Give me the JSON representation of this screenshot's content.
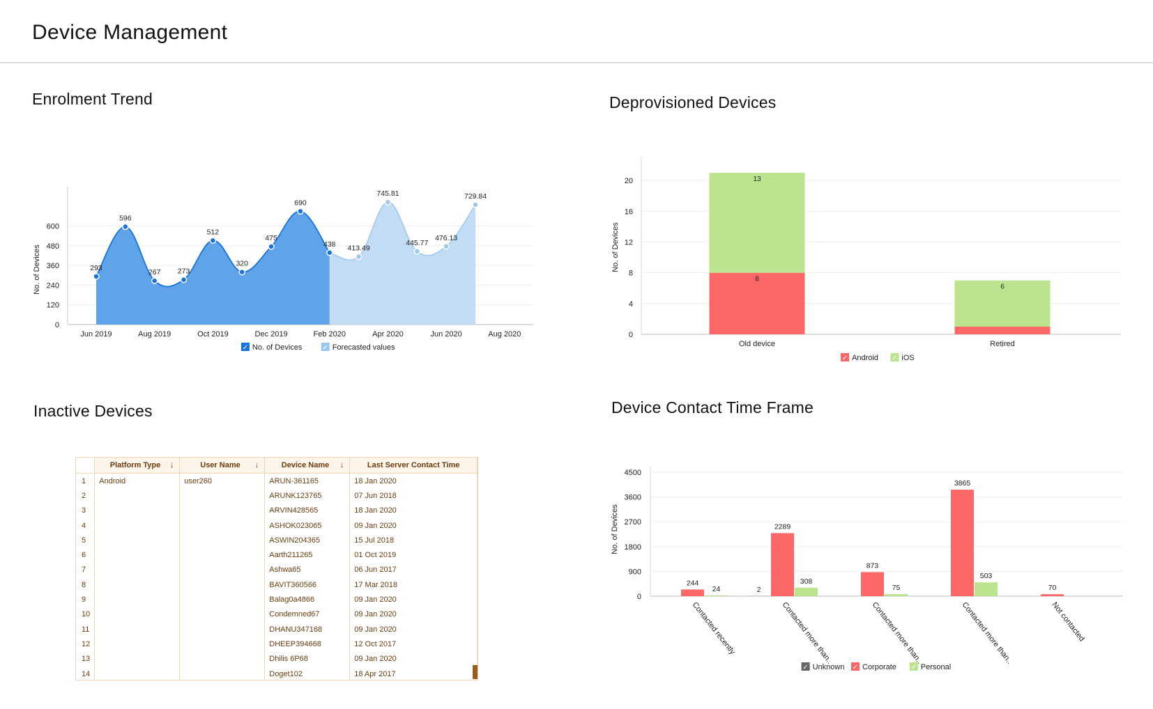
{
  "header": {
    "title": "Device Management"
  },
  "sections": {
    "enrolment": {
      "title": "Enrolment Trend"
    },
    "deprovisioned": {
      "title": "Deprovisioned Devices"
    },
    "inactive": {
      "title": "Inactive Devices"
    },
    "contact": {
      "title": "Device Contact Time Frame"
    }
  },
  "colors": {
    "actual": "#5fa4e8",
    "actual_line": "#1a73d9",
    "forecast": "#c2dcf5",
    "forecast_line": "#9ec7f0",
    "android": "#fe6767",
    "ios": "#bce48f",
    "unknown": "#666666",
    "corporate": "#fe6767",
    "personal": "#bce48f",
    "table_text": "#6b3d0f",
    "table_border": "#f2d6b6"
  },
  "chart_data": [
    {
      "id": "enrolment",
      "type": "area",
      "title": "Enrolment Trend",
      "xlabel": "",
      "ylabel": "No. of Devices",
      "ylim": [
        0,
        840
      ],
      "yticks": [
        0,
        120,
        240,
        360,
        480,
        600
      ],
      "xtick_labels": [
        "Jun 2019",
        "Aug 2019",
        "Oct 2019",
        "Dec 2019",
        "Feb 2020",
        "Apr 2020",
        "Jun 2020",
        "Aug 2020"
      ],
      "grid": true,
      "legend": {
        "position": "bottom",
        "entries": [
          "No. of Devices",
          "Forecasted values"
        ]
      },
      "series": [
        {
          "name": "No. of Devices",
          "x": [
            "Jun 2019",
            "Jul 2019",
            "Aug 2019",
            "Sep 2019",
            "Oct 2019",
            "Nov 2019",
            "Dec 2019",
            "Jan 2020",
            "Feb 2020"
          ],
          "values": [
            293,
            596,
            267,
            273,
            512,
            320,
            475,
            690,
            438
          ],
          "labels": [
            "293",
            "596",
            "267",
            "273",
            "512",
            "320",
            "475",
            "690",
            "438"
          ]
        },
        {
          "name": "Forecasted values",
          "x": [
            "Feb 2020",
            "Mar 2020",
            "Apr 2020",
            "May 2020",
            "Jun 2020",
            "Jul 2020"
          ],
          "values": [
            438,
            413.49,
            745.81,
            445.77,
            476.13,
            729.84
          ],
          "labels": [
            "",
            "413.49",
            "745.81",
            "445.77",
            "476.13",
            "729.84"
          ]
        }
      ]
    },
    {
      "id": "deprovisioned",
      "type": "bar",
      "stacked": true,
      "title": "Deprovisioned Devices",
      "xlabel": "",
      "ylabel": "No. of Devices",
      "ylim": [
        0,
        24
      ],
      "yticks": [
        0,
        4,
        8,
        12,
        16,
        20
      ],
      "categories": [
        "Old device",
        "Retired"
      ],
      "grid": true,
      "legend": {
        "position": "bottom",
        "entries": [
          "Android",
          "iOS"
        ]
      },
      "series": [
        {
          "name": "Android",
          "values": [
            8,
            1
          ],
          "labels": [
            "8",
            ""
          ]
        },
        {
          "name": "iOS",
          "values": [
            13,
            6
          ],
          "labels": [
            "13",
            "6"
          ]
        }
      ]
    },
    {
      "id": "contact",
      "type": "bar",
      "stacked": false,
      "title": "Device Contact Time Frame",
      "xlabel": "",
      "ylabel": "No. of Devices",
      "ylim": [
        0,
        4500
      ],
      "yticks": [
        0,
        900,
        1800,
        2700,
        3600,
        4500
      ],
      "categories": [
        "Contacted recently",
        "Contacted more than..",
        "Contacted more than..",
        "Contacted more than..",
        "Not contacted"
      ],
      "grid": true,
      "legend": {
        "position": "bottom",
        "entries": [
          "Unknown",
          "Corporate",
          "Personal"
        ]
      },
      "series": [
        {
          "name": "Unknown",
          "values": [
            0,
            2,
            0,
            0,
            0
          ],
          "labels": [
            "",
            "2",
            "",
            "",
            ""
          ]
        },
        {
          "name": "Corporate",
          "values": [
            244,
            2289,
            873,
            3865,
            70
          ],
          "labels": [
            "244",
            "2289",
            "873",
            "3865",
            "70"
          ]
        },
        {
          "name": "Personal",
          "values": [
            24,
            308,
            75,
            503,
            0
          ],
          "labels": [
            "24",
            "308",
            "75",
            "503",
            ""
          ]
        }
      ]
    }
  ],
  "inactive_table": {
    "columns": [
      {
        "label": "Platform Type",
        "sortable": true
      },
      {
        "label": "User Name",
        "sortable": true
      },
      {
        "label": "Device Name",
        "sortable": true
      },
      {
        "label": "Last Server Contact Time",
        "sortable": false
      }
    ],
    "sort_icon": "↓",
    "rows": [
      {
        "n": "1",
        "platform": "Android",
        "user": "user260",
        "device": "ARUN-361165",
        "time": "18 Jan 2020"
      },
      {
        "n": "2",
        "platform": "",
        "user": "",
        "device": "ARUNK123765",
        "time": "07 Jun 2018"
      },
      {
        "n": "3",
        "platform": "",
        "user": "",
        "device": "ARVIN428565",
        "time": "18 Jan 2020"
      },
      {
        "n": "4",
        "platform": "",
        "user": "",
        "device": "ASHOK023065",
        "time": "09 Jan 2020"
      },
      {
        "n": "5",
        "platform": "",
        "user": "",
        "device": "ASWIN204365",
        "time": "15 Jul 2018"
      },
      {
        "n": "6",
        "platform": "",
        "user": "",
        "device": "Aarth211265",
        "time": "01 Oct 2019"
      },
      {
        "n": "7",
        "platform": "",
        "user": "",
        "device": "Ashwa65",
        "time": "06 Jun 2017"
      },
      {
        "n": "8",
        "platform": "",
        "user": "",
        "device": "BAVIT360566",
        "time": "17 Mar 2018"
      },
      {
        "n": "9",
        "platform": "",
        "user": "",
        "device": "Balag0a4866",
        "time": "09 Jan 2020"
      },
      {
        "n": "10",
        "platform": "",
        "user": "",
        "device": "Condemned67",
        "time": "09 Jan 2020"
      },
      {
        "n": "11",
        "platform": "",
        "user": "",
        "device": "DHANU347168",
        "time": "09 Jan 2020"
      },
      {
        "n": "12",
        "platform": "",
        "user": "",
        "device": "DHEEP394668",
        "time": "12 Oct 2017"
      },
      {
        "n": "13",
        "platform": "",
        "user": "",
        "device": "Dhilis 6P68",
        "time": "09 Jan 2020"
      },
      {
        "n": "14",
        "platform": "",
        "user": "",
        "device": "Doget102",
        "time": "18 Apr 2017"
      }
    ]
  },
  "legend_check_icon": "✓"
}
